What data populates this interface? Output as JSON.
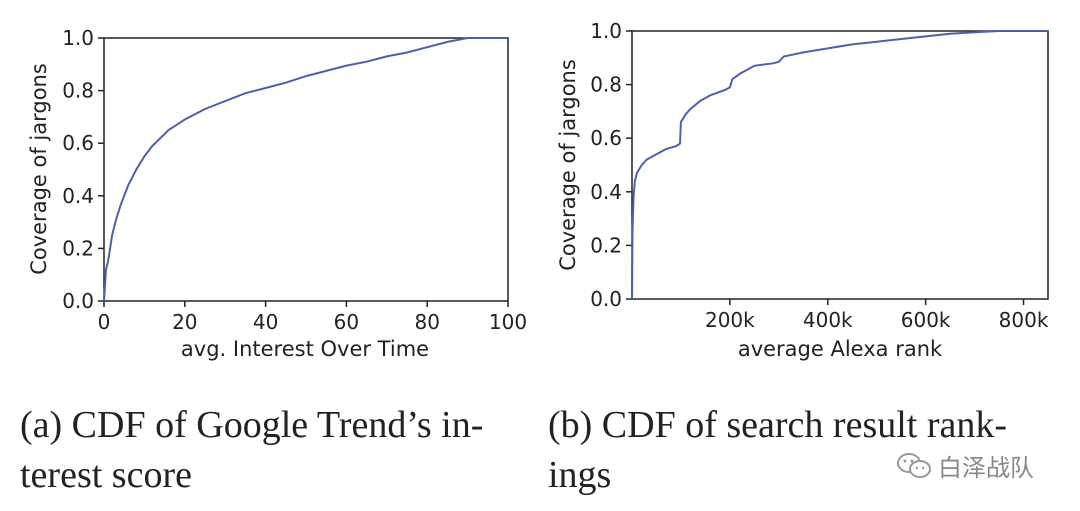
{
  "figure": {
    "caption_a_line1": "(a) CDF of Google Trend’s in-",
    "caption_a_line2": "terest score",
    "caption_b_line1": "(b) CDF of search result rank-",
    "caption_b_line2": "ings",
    "watermark": "白泽战队",
    "watermark_icon": "wechat-icon",
    "line_color": "#4f5fb0"
  },
  "chart_data": [
    {
      "type": "line",
      "title": "",
      "xlabel": "avg. Interest Over Time",
      "ylabel": "Coverage of jargons",
      "xlim": [
        0,
        100
      ],
      "ylim": [
        0,
        1.0
      ],
      "xticks": [
        "0",
        "20",
        "40",
        "60",
        "80",
        "100"
      ],
      "yticks": [
        "0.0",
        "0.2",
        "0.4",
        "0.6",
        "0.8",
        "1.0"
      ],
      "grid": false,
      "series": [
        {
          "x": [
            0,
            0.5,
            1,
            1.5,
            2,
            3,
            4,
            5,
            6,
            8,
            10,
            12,
            14,
            16,
            18,
            20,
            25,
            30,
            35,
            40,
            45,
            50,
            55,
            60,
            65,
            70,
            75,
            80,
            85,
            90,
            95,
            100
          ],
          "y": [
            0.0,
            0.12,
            0.15,
            0.2,
            0.25,
            0.31,
            0.36,
            0.4,
            0.44,
            0.5,
            0.55,
            0.59,
            0.62,
            0.65,
            0.67,
            0.69,
            0.73,
            0.76,
            0.79,
            0.81,
            0.83,
            0.855,
            0.875,
            0.895,
            0.91,
            0.93,
            0.945,
            0.965,
            0.985,
            1.0,
            1.0,
            1.0
          ]
        }
      ]
    },
    {
      "type": "line",
      "title": "",
      "xlabel": "average Alexa rank",
      "ylabel": "Coverage of jargons",
      "xlim": [
        0,
        850000
      ],
      "ylim": [
        0,
        1.0
      ],
      "xticks": [
        "200k",
        "400k",
        "600k",
        "800k"
      ],
      "yticks": [
        "0.0",
        "0.2",
        "0.4",
        "0.6",
        "0.8",
        "1.0"
      ],
      "grid": false,
      "series": [
        {
          "x": [
            0,
            1000,
            3000,
            6000,
            10000,
            20000,
            30000,
            50000,
            70000,
            90000,
            98000,
            100000,
            110000,
            120000,
            140000,
            160000,
            190000,
            200000,
            205000,
            220000,
            250000,
            290000,
            300000,
            310000,
            350000,
            400000,
            450000,
            500000,
            550000,
            600000,
            650000,
            700000,
            750000,
            800000,
            850000
          ],
          "y": [
            0.0,
            0.25,
            0.38,
            0.44,
            0.47,
            0.5,
            0.52,
            0.54,
            0.56,
            0.57,
            0.58,
            0.66,
            0.69,
            0.71,
            0.74,
            0.76,
            0.78,
            0.79,
            0.82,
            0.84,
            0.87,
            0.88,
            0.885,
            0.905,
            0.92,
            0.935,
            0.95,
            0.96,
            0.97,
            0.98,
            0.99,
            0.995,
            1.0,
            1.0,
            1.0
          ]
        }
      ]
    }
  ]
}
